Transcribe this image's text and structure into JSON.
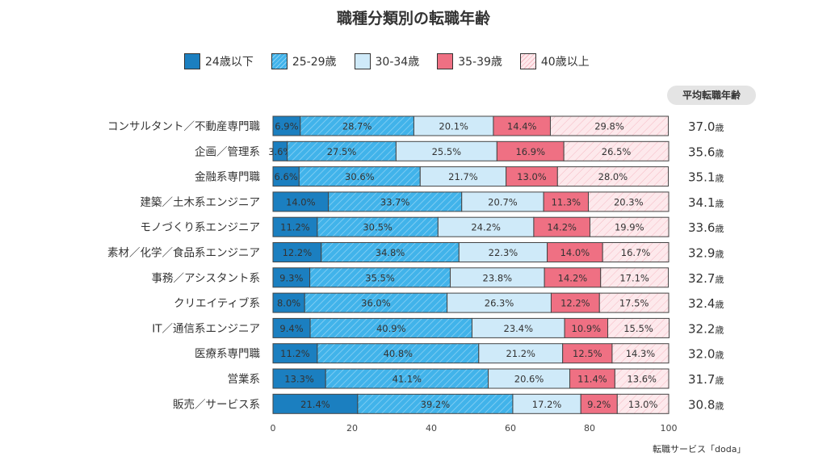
{
  "chart_data": {
    "type": "bar",
    "orientation": "horizontal-stacked-100",
    "title": "職種分類別の転職年齢",
    "series_names": [
      "24歳以下",
      "25-29歳",
      "30-34歳",
      "35-39歳",
      "40歳以上"
    ],
    "colors": [
      "#1b7fc0",
      "#41b3ea",
      "#cfeaf9",
      "#ef7083",
      "#fde9ec"
    ],
    "hatched": [
      false,
      true,
      false,
      false,
      true
    ],
    "categories": [
      "コンサルタント／不動産専門職",
      "企画／管理系",
      "金融系専門職",
      "建築／土木系エンジニア",
      "モノづくり系エンジニア",
      "素材／化学／食品系エンジニア",
      "事務／アシスタント系",
      "クリエイティブ系",
      "IT／通信系エンジニア",
      "医療系専門職",
      "営業系",
      "販売／サービス系"
    ],
    "values": [
      [
        6.9,
        28.7,
        20.1,
        14.4,
        29.8
      ],
      [
        3.6,
        27.5,
        25.5,
        16.9,
        26.5
      ],
      [
        6.6,
        30.6,
        21.7,
        13.0,
        28.0
      ],
      [
        14.0,
        33.7,
        20.7,
        11.3,
        20.3
      ],
      [
        11.2,
        30.5,
        24.2,
        14.2,
        19.9
      ],
      [
        12.2,
        34.8,
        22.3,
        14.0,
        16.7
      ],
      [
        9.3,
        35.5,
        23.8,
        14.2,
        17.1
      ],
      [
        8.0,
        36.0,
        26.3,
        12.2,
        17.5
      ],
      [
        9.4,
        40.9,
        23.4,
        10.9,
        15.5
      ],
      [
        11.2,
        40.8,
        21.2,
        12.5,
        14.3
      ],
      [
        13.3,
        41.1,
        20.6,
        11.4,
        13.6
      ],
      [
        21.4,
        39.2,
        17.2,
        9.2,
        13.0
      ]
    ],
    "avg_header": "平均転職年齢",
    "avg_ages": [
      "37.0",
      "35.6",
      "35.1",
      "34.1",
      "33.6",
      "32.9",
      "32.7",
      "32.4",
      "32.2",
      "32.0",
      "31.7",
      "30.8"
    ],
    "avg_unit": "歳",
    "xticks": [
      "0",
      "20",
      "40",
      "60",
      "80",
      "100"
    ],
    "xlim": [
      0,
      100
    ],
    "grid": false,
    "legend_position": "top"
  },
  "source": "転職サービス「doda」"
}
